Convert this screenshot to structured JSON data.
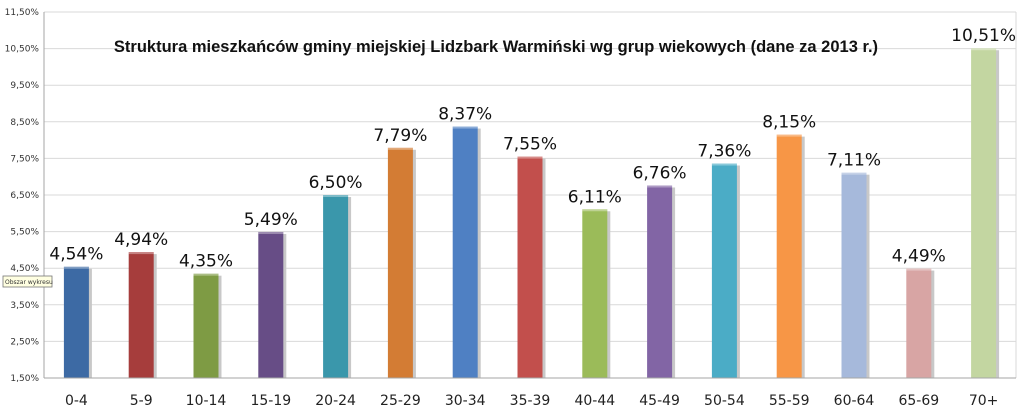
{
  "chart_data": {
    "type": "bar",
    "title": "Struktura mieszkańców gminy miejskiej Lidzbark Warmiński  wg  grup wiekowych  (dane za 2013 r.)",
    "xlabel": "",
    "ylabel": "",
    "ylim": [
      1.5,
      11.5
    ],
    "yticks": [
      1.5,
      2.5,
      3.5,
      4.5,
      5.5,
      6.5,
      7.5,
      8.5,
      9.5,
      10.5,
      11.5
    ],
    "ytick_labels": [
      "1,50%",
      "2,50%",
      "3,50%",
      "4,50%",
      "5,50%",
      "6,50%",
      "7,50%",
      "8,50%",
      "9,50%",
      "10,50%",
      "11,50%"
    ],
    "categories": [
      "0-4",
      "5-9",
      "10-14",
      "15-19",
      "20-24",
      "25-29",
      "30-34",
      "35-39",
      "40-44",
      "45-49",
      "50-54",
      "55-59",
      "60-64",
      "65-69",
      "70+"
    ],
    "values": [
      4.54,
      4.94,
      4.35,
      5.49,
      6.5,
      7.79,
      8.37,
      7.55,
      6.11,
      6.76,
      7.36,
      8.15,
      7.11,
      4.49,
      10.51
    ],
    "data_labels": [
      "4,54%",
      "4,94%",
      "4,35%",
      "5,49%",
      "6,50%",
      "7,79%",
      "8,37%",
      "7,55%",
      "6,11%",
      "6,76%",
      "7,36%",
      "8,15%",
      "7,11%",
      "4,49%",
      "10,51%"
    ],
    "colors": [
      "#3D6AA4",
      "#A63D3C",
      "#7E9B44",
      "#674D86",
      "#3A97AB",
      "#D37C34",
      "#4F80C3",
      "#C24F4C",
      "#9BBB59",
      "#8265A5",
      "#4BACC6",
      "#F79646",
      "#A6B9DB",
      "#D8A5A4",
      "#C3D6A1"
    ],
    "grid": true,
    "legend": "none"
  },
  "tooltip": {
    "text": "Obszar wykresu"
  }
}
